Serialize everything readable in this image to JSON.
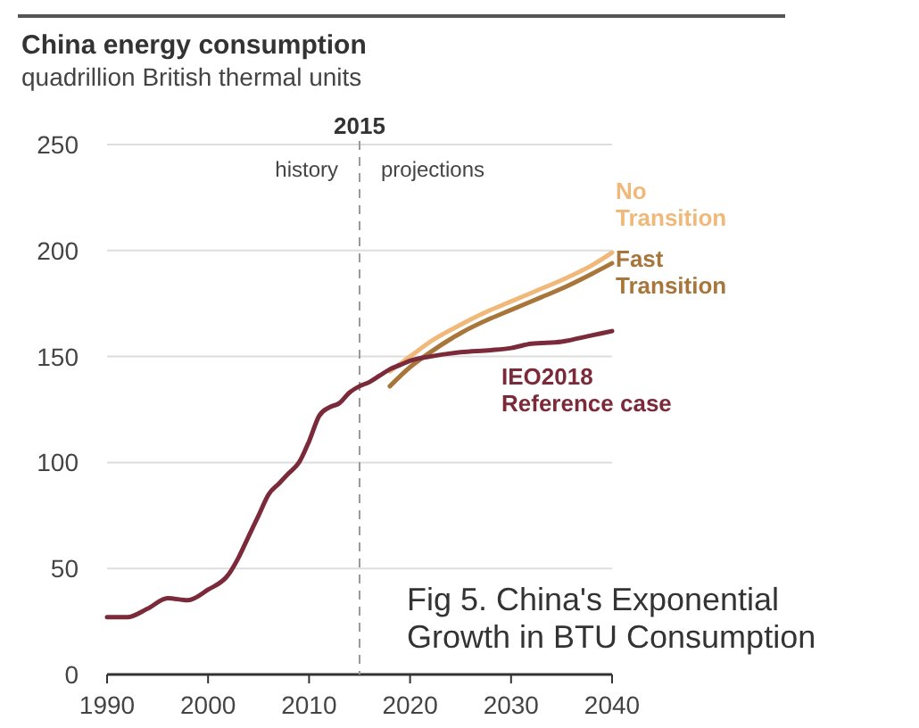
{
  "chart_data": {
    "type": "line",
    "title": "China energy consumption",
    "subtitle": "quadrillion British thermal units",
    "xlim": [
      1990,
      2040
    ],
    "xticks": [
      1990,
      2000,
      2010,
      2020,
      2030,
      2040
    ],
    "ylim": [
      0,
      250
    ],
    "yticks": [
      0,
      50,
      100,
      150,
      200,
      250
    ],
    "grid": "y",
    "legend": false,
    "line_style": "solid",
    "series": [
      {
        "name": "No Transition",
        "color": "#f0b97a",
        "x": [
          2018,
          2020,
          2022,
          2025,
          2028,
          2030,
          2033,
          2035,
          2038,
          2040
        ],
        "values": [
          143,
          150,
          157,
          165,
          172,
          176,
          182,
          186,
          193,
          199
        ]
      },
      {
        "name": "Fast Transition",
        "color": "#a8763a",
        "x": [
          2018,
          2020,
          2022,
          2025,
          2028,
          2030,
          2033,
          2035,
          2038,
          2040
        ],
        "values": [
          136,
          145,
          152,
          161,
          168,
          172,
          178,
          182,
          189,
          194
        ]
      },
      {
        "name": "IEO2018 Reference case",
        "color": "#7b2a3a",
        "x": [
          1990,
          1992,
          1994,
          1996,
          1998,
          2000,
          2002,
          2003,
          2004,
          2005,
          2006,
          2007,
          2008,
          2009,
          2010,
          2011,
          2012,
          2013,
          2014,
          2015,
          2016,
          2017,
          2018,
          2019,
          2020,
          2022,
          2025,
          2028,
          2030,
          2032,
          2035,
          2038,
          2040
        ],
        "values": [
          27,
          27,
          31,
          36,
          35,
          40,
          47,
          55,
          65,
          75,
          85,
          90,
          95,
          100,
          110,
          122,
          126,
          128,
          133,
          136,
          138,
          141,
          144,
          146,
          148,
          150,
          152,
          153,
          154,
          156,
          157,
          160,
          162
        ]
      }
    ],
    "ref_lines": [
      {
        "axis": "x",
        "value": 2015,
        "label": "2015",
        "color": "#999999",
        "line_style": "dashed"
      }
    ],
    "annotations": [
      "history",
      "projections",
      "Fig 5. China's Exponential Growth in BTU Consumption"
    ]
  }
}
